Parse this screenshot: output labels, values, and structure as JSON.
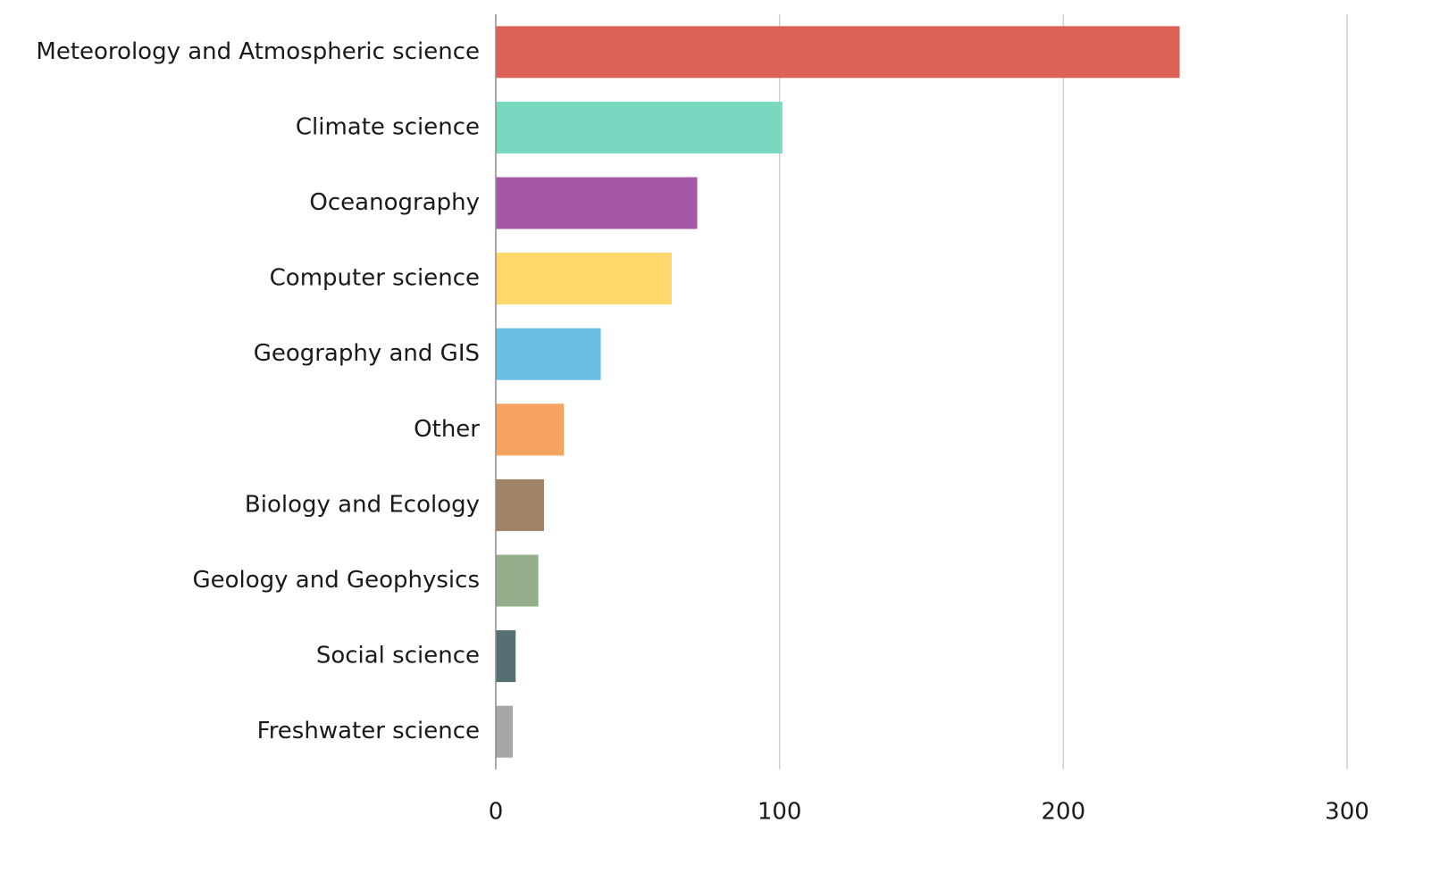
{
  "chart_data": {
    "type": "bar",
    "orientation": "horizontal",
    "title": "",
    "xlabel": "",
    "ylabel": "",
    "xlim": [
      0,
      300
    ],
    "x_ticks": [
      0,
      100,
      200,
      300
    ],
    "x_tick_labels": [
      "0",
      "100",
      "200",
      "300"
    ],
    "grid": true,
    "legend": "none",
    "categories": [
      "Meteorology and Atmospheric science",
      "Climate science",
      "Oceanography",
      "Computer science",
      "Geography and GIS",
      "Other",
      "Biology and Ecology",
      "Geology and Geophysics",
      "Social science",
      "Freshwater science"
    ],
    "values": [
      241,
      101,
      71,
      62,
      37,
      24,
      17,
      15,
      7,
      6
    ],
    "colors": [
      "#dc6257",
      "#79d9c0",
      "#a657a6",
      "#ffd76a",
      "#6abde3",
      "#f5a35f",
      "#a08468",
      "#94ae8b",
      "#566f75",
      "#a6a6a6"
    ]
  }
}
